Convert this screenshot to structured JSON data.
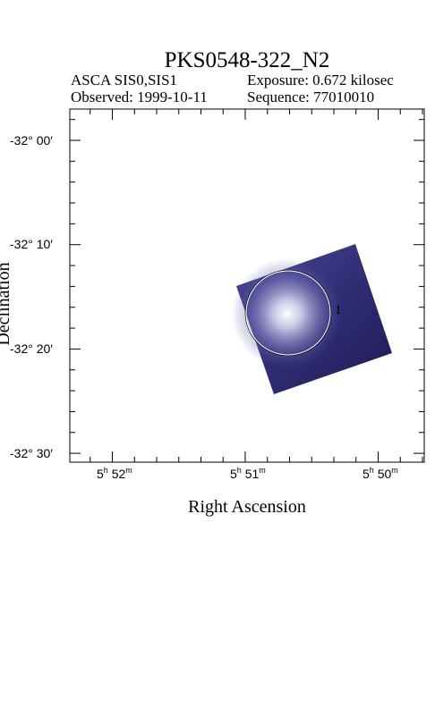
{
  "title": "PKS0548-322_N2",
  "meta": {
    "instrument": "ASCA SIS0,SIS1",
    "exposure": "Exposure: 0.672 kilosec",
    "observed": "Observed: 1999-10-11",
    "sequence": "Sequence: 77010010"
  },
  "axes": {
    "xlabel": "Right Ascension",
    "ylabel": "Declination",
    "x_ticks": [
      {
        "h": "5",
        "m": "52"
      },
      {
        "h": "5",
        "m": "51"
      },
      {
        "h": "5",
        "m": "50"
      }
    ],
    "y_ticks": [
      "-32° 00′",
      "-32° 10′",
      "-32° 20′",
      "-32° 30′"
    ]
  },
  "source": {
    "label": "1"
  },
  "colors": {
    "image_dark": "#252160",
    "image_mid": "#403c8c",
    "source_glow": "#ffffff"
  }
}
